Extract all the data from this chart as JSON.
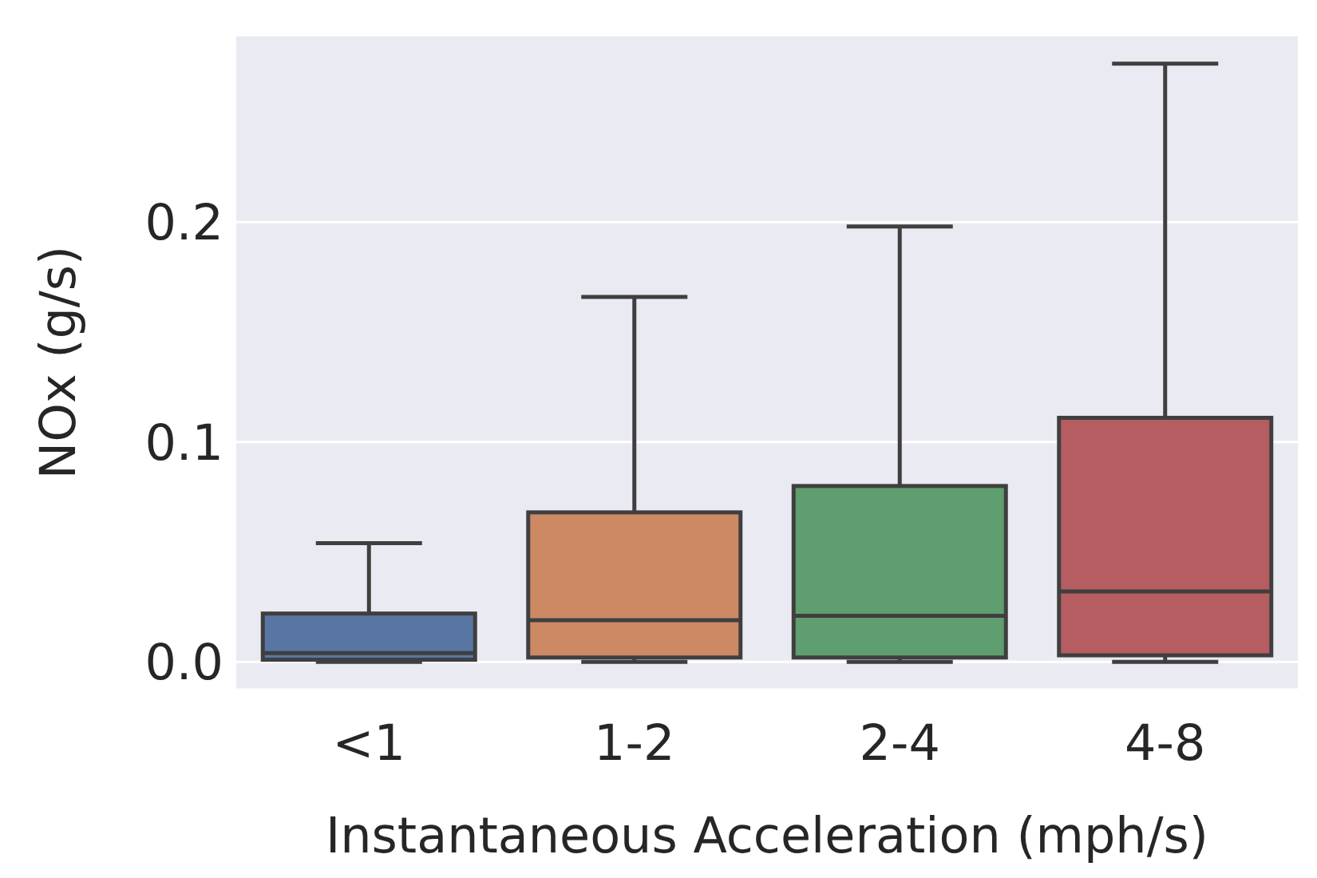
{
  "chart_data": {
    "type": "box",
    "xlabel": "Instantaneous Acceleration (mph/s)",
    "ylabel": "NOx (g/s)",
    "categories": [
      "<1",
      "1-2",
      "2-4",
      "4-8"
    ],
    "colors": [
      "#5975a4",
      "#cc8963",
      "#5f9e6e",
      "#b55d60"
    ],
    "boxes": [
      {
        "low": 0,
        "q1": 0.001,
        "median": 0.004,
        "q3": 0.022,
        "high": 0.054
      },
      {
        "low": 0,
        "q1": 0.002,
        "median": 0.019,
        "q3": 0.068,
        "high": 0.166
      },
      {
        "low": 0,
        "q1": 0.002,
        "median": 0.021,
        "q3": 0.08,
        "high": 0.198
      },
      {
        "low": 0,
        "q1": 0.003,
        "median": 0.032,
        "q3": 0.111,
        "high": 0.272
      }
    ],
    "ylim": [
      -0.0126,
      0.285
    ],
    "yticks": [
      {
        "value": 0,
        "label": "0.0"
      },
      {
        "value": 0.1,
        "label": "0.1"
      },
      {
        "value": 0.2,
        "label": "0.2"
      }
    ],
    "grid": "y"
  }
}
